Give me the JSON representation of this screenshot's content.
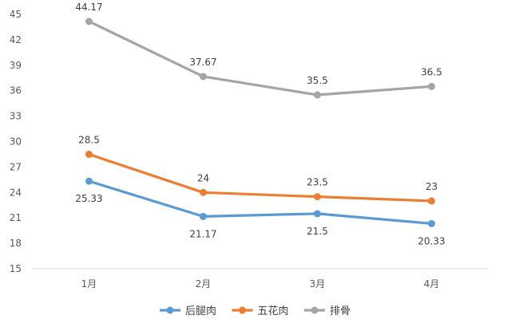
{
  "chart_data": {
    "type": "line",
    "categories": [
      "1月",
      "2月",
      "3月",
      "4月"
    ],
    "series": [
      {
        "name": "后腿肉",
        "values": [
          25.33,
          21.17,
          21.5,
          20.33
        ],
        "color": "#5b9bd5",
        "label_pos": "below"
      },
      {
        "name": "五花肉",
        "values": [
          28.5,
          24,
          23.5,
          23
        ],
        "color": "#ed7d31",
        "label_pos": "above"
      },
      {
        "name": "排骨",
        "values": [
          44.17,
          37.67,
          35.5,
          36.5
        ],
        "color": "#a5a5a5",
        "label_pos": "above"
      }
    ],
    "ylim": [
      15,
      45
    ],
    "yticks": [
      15,
      18,
      21,
      24,
      27,
      30,
      33,
      36,
      39,
      42,
      45
    ],
    "grid": false,
    "legend_position": "bottom",
    "title": "",
    "xlabel": "",
    "ylabel": ""
  }
}
